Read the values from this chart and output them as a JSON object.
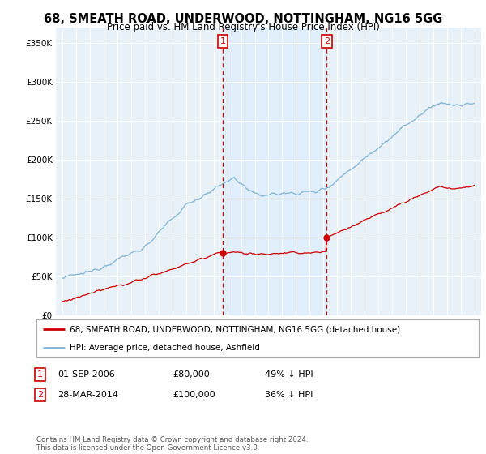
{
  "title": "68, SMEATH ROAD, UNDERWOOD, NOTTINGHAM, NG16 5GG",
  "subtitle": "Price paid vs. HM Land Registry's House Price Index (HPI)",
  "purchase_info": [
    {
      "label": "1",
      "date": "01-SEP-2006",
      "price": "£80,000",
      "hpi": "49% ↓ HPI"
    },
    {
      "label": "2",
      "date": "28-MAR-2014",
      "price": "£100,000",
      "hpi": "36% ↓ HPI"
    }
  ],
  "purchase_year1": 2006.67,
  "purchase_year2": 2014.24,
  "purchase_price1": 80000,
  "purchase_price2": 100000,
  "legend_property": "68, SMEATH ROAD, UNDERWOOD, NOTTINGHAM, NG16 5GG (detached house)",
  "legend_hpi": "HPI: Average price, detached house, Ashfield",
  "footnote": "Contains HM Land Registry data © Crown copyright and database right 2024.\nThis data is licensed under the Open Government Licence v3.0.",
  "property_color": "#cc0000",
  "hpi_color": "#7fb3d3",
  "shade_color": "#ddeeff",
  "dashed_color": "#cc0000",
  "ylim": [
    0,
    370000
  ],
  "ylabel_ticks": [
    0,
    50000,
    100000,
    150000,
    200000,
    250000,
    300000,
    350000
  ],
  "xlim_min": 1994.5,
  "xlim_max": 2025.5,
  "background_color": "#ffffff",
  "plot_bg_color": "#e8f0f8"
}
